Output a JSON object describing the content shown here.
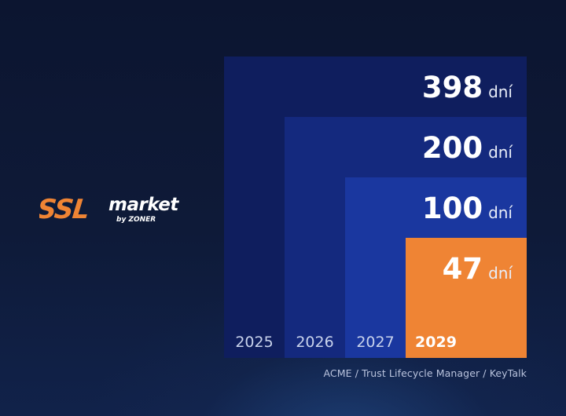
{
  "brand": {
    "logo_text": "SSLmarket",
    "logo_subtext": "by ZONER",
    "accent_color": "#ef8434"
  },
  "chart_data": {
    "type": "bar",
    "orientation": "nested-squares",
    "unit": "dní",
    "categories": [
      "2025",
      "2026",
      "2027",
      "2029"
    ],
    "values": [
      398,
      200,
      100,
      47
    ],
    "colors": [
      "#0f1e5e",
      "#14297e",
      "#1a379f",
      "#ef8434"
    ],
    "highlight_category": "2029",
    "grid": false,
    "legend": "none"
  },
  "source_text": "ACME / Trust Lifecycle Manager / KeyTalk"
}
